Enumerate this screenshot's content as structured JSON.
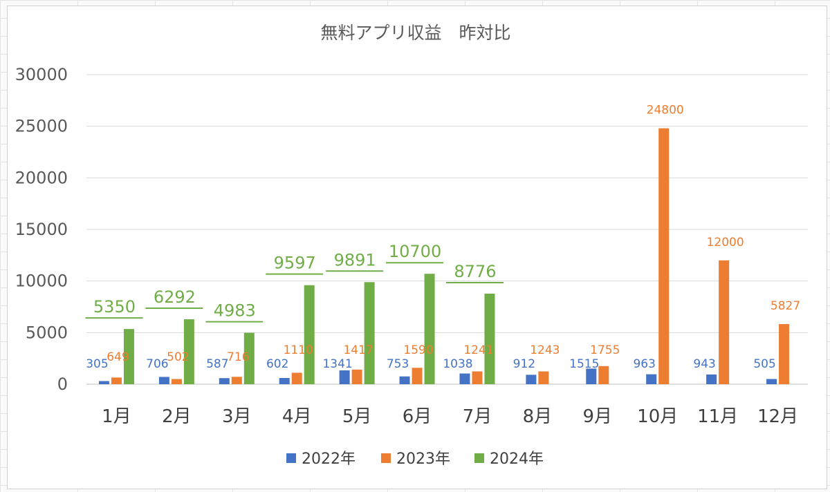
{
  "chart_data": {
    "type": "bar",
    "title": "無料アプリ収益　昨対比",
    "categories": [
      "1月",
      "2月",
      "3月",
      "4月",
      "5月",
      "6月",
      "7月",
      "8月",
      "9月",
      "10月",
      "11月",
      "12月"
    ],
    "series": [
      {
        "name": "2022年",
        "color": "#4472c4",
        "values": [
          305,
          706,
          587,
          602,
          1341,
          753,
          1038,
          912,
          1515,
          963,
          943,
          505
        ]
      },
      {
        "name": "2023年",
        "color": "#ed7d31",
        "values": [
          649,
          502,
          716,
          1110,
          1417,
          1590,
          1241,
          1243,
          1755,
          24800,
          12000,
          5827
        ]
      },
      {
        "name": "2024年",
        "color": "#70ad47",
        "values": [
          5350,
          6292,
          4983,
          9597,
          9891,
          10700,
          8776,
          null,
          null,
          null,
          null,
          null
        ]
      }
    ],
    "ylim": [
      0,
      30000
    ],
    "yticks": [
      0,
      5000,
      10000,
      15000,
      20000,
      25000,
      30000
    ],
    "grid": true,
    "legend": "bottom",
    "data_labels": true
  }
}
